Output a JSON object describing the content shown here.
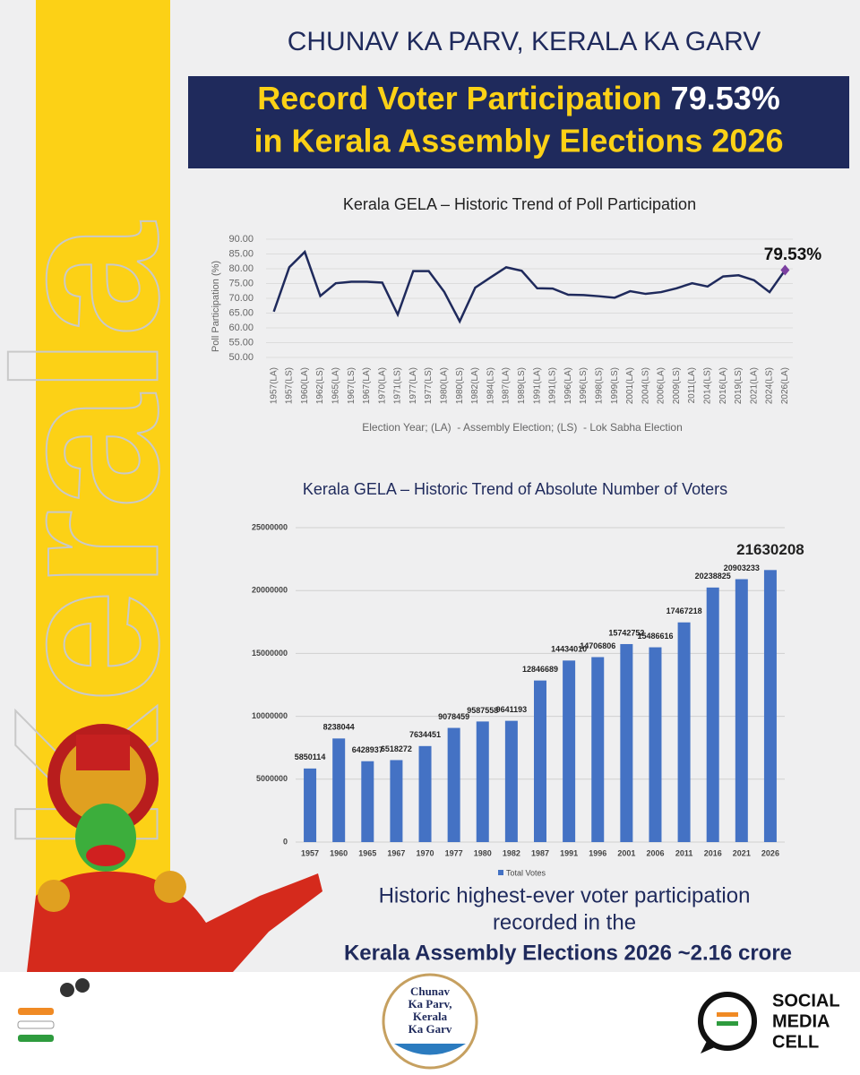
{
  "side_text": "Kerala",
  "header": {
    "title": "CHUNAV KA PARV, KERALA KA GARV",
    "banner_line1_a": "Record Voter Participation",
    "banner_line1_b": "79.53%",
    "banner_line2": "in Kerala Assembly Elections 2026"
  },
  "chart_data": [
    {
      "type": "line",
      "title": "Kerala GELA – Historic Trend of Poll Participation",
      "ylabel": "Poll Participation (%)",
      "xlabel": "Election Year; (LA)  - Assembly Election; (LS)  - Lok Sabha Election",
      "categories": [
        "1957(LA)",
        "1957(LS)",
        "1960(LA)",
        "1962(LS)",
        "1965(LA)",
        "1967(LS)",
        "1967(LA)",
        "1970(LA)",
        "1971(LS)",
        "1977(LA)",
        "1977(LS)",
        "1980(LA)",
        "1980(LS)",
        "1982(LA)",
        "1984(LS)",
        "1987(LA)",
        "1989(LS)",
        "1991(LA)",
        "1991(LS)",
        "1996(LA)",
        "1996(LS)",
        "1998(LS)",
        "1999(LS)",
        "2001(LA)",
        "2004(LS)",
        "2006(LA)",
        "2009(LS)",
        "2011(LA)",
        "2014(LS)",
        "2016(LA)",
        "2019(LS)",
        "2021(LA)",
        "2024(LS)",
        "2026(LA)"
      ],
      "values": [
        65.5,
        80.5,
        85.7,
        70.8,
        75.1,
        75.6,
        75.6,
        75.3,
        64.5,
        79.2,
        79.2,
        72.2,
        62.2,
        73.6,
        77.1,
        80.5,
        79.3,
        73.4,
        73.3,
        71.2,
        71.1,
        70.7,
        70.2,
        72.4,
        71.5,
        72.1,
        73.4,
        75.1,
        74.0,
        77.4,
        77.8,
        76.1,
        72.1,
        79.53
      ],
      "color": "#1f2a5c",
      "highlight_color": "#7b3fa0",
      "annotation": "79.53%",
      "ylim": [
        50,
        90
      ],
      "yticks": [
        {
          "value": 50,
          "label": "50.00"
        },
        {
          "value": 55,
          "label": "55.00"
        },
        {
          "value": 60,
          "label": "60.00"
        },
        {
          "value": 65,
          "label": "65.00"
        },
        {
          "value": 70,
          "label": "70.00"
        },
        {
          "value": 75,
          "label": "75.00"
        },
        {
          "value": 80,
          "label": "80.00"
        },
        {
          "value": 85,
          "label": "85.00"
        },
        {
          "value": 90,
          "label": "90.00"
        }
      ],
      "grid": true
    },
    {
      "type": "bar",
      "title": "Kerala GELA – Historic Trend of Absolute Number of Voters",
      "categories": [
        "1957",
        "1960",
        "1965",
        "1967",
        "1970",
        "1977",
        "1980",
        "1982",
        "1987",
        "1991",
        "1996",
        "2001",
        "2006",
        "2011",
        "2016",
        "2021",
        "2026"
      ],
      "series": [
        {
          "name": "Total Votes",
          "color": "#4472c4",
          "values": [
            5850114,
            8238044,
            6428937,
            6518272,
            7634451,
            9078459,
            9587558,
            9641193,
            12846689,
            14434010,
            14706806,
            15742752,
            15486616,
            17467218,
            20238825,
            20903233,
            21630208
          ]
        }
      ],
      "ylim": [
        0,
        25000000
      ],
      "yticks": [
        0,
        5000000,
        10000000,
        15000000,
        20000000,
        25000000
      ],
      "grid": true,
      "legend": "bottom"
    }
  ],
  "footer": {
    "line1": "Historic highest-ever voter participation",
    "line2": "recorded in the",
    "line3": "Kerala Assembly Elections 2026 ~2.16 crore"
  },
  "logos": {
    "center": [
      "Chunav",
      "Ka Parv,",
      "Kerala",
      "Ka Garv"
    ],
    "right": [
      "SOCIAL",
      "MEDIA",
      "CELL"
    ]
  }
}
